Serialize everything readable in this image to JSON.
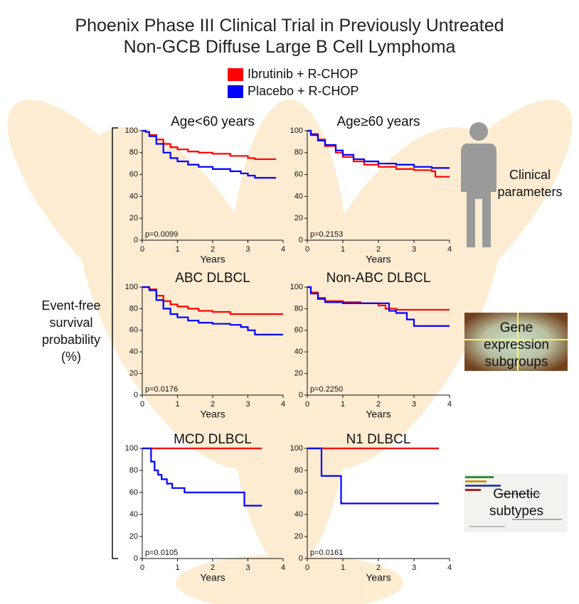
{
  "title": [
    "Phoenix Phase III Clinical Trial in Previously Untreated",
    "Non-GCB Diffuse Large B Cell Lymphoma"
  ],
  "legend": [
    {
      "name": "Ibrutinib + R-CHOP",
      "color": "#ff0000"
    },
    {
      "name": "Placebo + R-CHOP",
      "color": "#0000ff"
    }
  ],
  "y_axis_label": "Event-free survival probability (%)",
  "side_labels": [
    "Clinical parameters",
    "Gene expression subgroups",
    "Genetic subtypes"
  ],
  "chart_data": [
    {
      "type": "line",
      "step": true,
      "title": "Age<60 years",
      "annotation": "p=0.0099",
      "xlabel": "Years",
      "xlim": [
        0,
        4
      ],
      "ylim": [
        0,
        100
      ],
      "xticks": [
        0,
        1,
        2,
        3,
        4
      ],
      "yticks": [
        0,
        20,
        40,
        60,
        80,
        100
      ],
      "series": [
        {
          "color": "#ff0000",
          "x": [
            0,
            0.1,
            0.2,
            0.4,
            0.6,
            0.8,
            1.0,
            1.3,
            1.6,
            2.0,
            2.5,
            3.0,
            3.2,
            3.8
          ],
          "values": [
            100,
            99,
            96,
            92,
            88,
            85,
            83,
            81,
            80,
            79,
            77,
            75,
            74,
            74
          ]
        },
        {
          "color": "#0000ff",
          "x": [
            0,
            0.1,
            0.2,
            0.4,
            0.6,
            0.8,
            1.0,
            1.3,
            1.6,
            2.0,
            2.5,
            2.8,
            3.0,
            3.2,
            3.8
          ],
          "values": [
            100,
            99,
            95,
            88,
            80,
            75,
            72,
            69,
            67,
            65,
            63,
            61,
            59,
            57,
            57
          ]
        }
      ]
    },
    {
      "type": "line",
      "step": true,
      "title": "Age≥60 years",
      "annotation": "p=0.2153",
      "xlabel": "Years",
      "xlim": [
        0,
        4
      ],
      "ylim": [
        0,
        100
      ],
      "xticks": [
        0,
        1,
        2,
        3,
        4
      ],
      "yticks": [
        0,
        20,
        40,
        60,
        80,
        100
      ],
      "series": [
        {
          "color": "#ff0000",
          "x": [
            0,
            0.1,
            0.3,
            0.5,
            0.8,
            1.0,
            1.3,
            1.6,
            2.0,
            2.5,
            3.0,
            3.5,
            3.6,
            4.0
          ],
          "values": [
            100,
            97,
            92,
            86,
            80,
            76,
            72,
            69,
            67,
            65,
            64,
            63,
            58,
            58
          ]
        },
        {
          "color": "#0000ff",
          "x": [
            0,
            0.1,
            0.3,
            0.5,
            0.8,
            1.0,
            1.3,
            1.6,
            2.0,
            2.5,
            3.0,
            3.5,
            4.0
          ],
          "values": [
            100,
            96,
            91,
            87,
            82,
            78,
            74,
            72,
            70,
            69,
            67,
            66,
            66
          ]
        }
      ]
    },
    {
      "type": "line",
      "step": true,
      "title": "ABC DLBCL",
      "annotation": "p=0.0176",
      "xlabel": "Years",
      "xlim": [
        0,
        4
      ],
      "ylim": [
        0,
        100
      ],
      "xticks": [
        0,
        1,
        2,
        3,
        4
      ],
      "yticks": [
        0,
        20,
        40,
        60,
        80,
        100
      ],
      "series": [
        {
          "color": "#ff0000",
          "x": [
            0,
            0.2,
            0.4,
            0.6,
            0.8,
            1.0,
            1.3,
            1.6,
            2.0,
            2.5,
            3.0,
            4.0
          ],
          "values": [
            100,
            98,
            92,
            87,
            84,
            82,
            80,
            78,
            77,
            75,
            75,
            75
          ]
        },
        {
          "color": "#0000ff",
          "x": [
            0,
            0.2,
            0.4,
            0.6,
            0.8,
            1.0,
            1.3,
            1.6,
            2.0,
            2.5,
            2.8,
            3.0,
            3.2,
            4.0
          ],
          "values": [
            100,
            97,
            88,
            80,
            75,
            72,
            69,
            67,
            66,
            65,
            63,
            60,
            56,
            56
          ]
        }
      ]
    },
    {
      "type": "line",
      "step": true,
      "title": "Non-ABC DLBCL",
      "annotation": "p=0.2250",
      "xlabel": "Years",
      "xlim": [
        0,
        4
      ],
      "ylim": [
        0,
        100
      ],
      "xticks": [
        0,
        1,
        2,
        3,
        4
      ],
      "yticks": [
        0,
        20,
        40,
        60,
        80,
        100
      ],
      "series": [
        {
          "color": "#ff0000",
          "x": [
            0,
            0.1,
            0.3,
            0.5,
            1.0,
            1.5,
            2.0,
            2.2,
            2.5,
            3.0,
            4.0
          ],
          "values": [
            100,
            95,
            90,
            87,
            86,
            85,
            83,
            80,
            79,
            79,
            79
          ]
        },
        {
          "color": "#0000ff",
          "x": [
            0,
            0.1,
            0.3,
            0.5,
            1.0,
            1.5,
            2.0,
            2.3,
            2.5,
            2.8,
            3.0,
            4.0
          ],
          "values": [
            100,
            94,
            89,
            86,
            85,
            85,
            85,
            78,
            76,
            70,
            64,
            64
          ]
        }
      ]
    },
    {
      "type": "line",
      "step": true,
      "title": "MCD DLBCL",
      "annotation": "p=0.0105",
      "xlabel": "Years",
      "xlim": [
        0,
        4
      ],
      "ylim": [
        0,
        100
      ],
      "xticks": [
        0,
        1,
        2,
        3,
        4
      ],
      "yticks": [
        0,
        20,
        40,
        60,
        80,
        100
      ],
      "series": [
        {
          "color": "#ff0000",
          "x": [
            0,
            3.4
          ],
          "values": [
            100,
            100
          ]
        },
        {
          "color": "#0000ff",
          "x": [
            0,
            0.25,
            0.35,
            0.45,
            0.55,
            0.7,
            0.85,
            1.2,
            2.9,
            3.4
          ],
          "values": [
            100,
            88,
            80,
            76,
            72,
            68,
            64,
            60,
            48,
            48
          ]
        }
      ]
    },
    {
      "type": "line",
      "step": true,
      "title": "N1 DLBCL",
      "annotation": "p=0.0161",
      "xlabel": "Years",
      "xlim": [
        0,
        4
      ],
      "ylim": [
        0,
        100
      ],
      "xticks": [
        0,
        1,
        2,
        3,
        4
      ],
      "yticks": [
        0,
        20,
        40,
        60,
        80,
        100
      ],
      "series": [
        {
          "color": "#ff0000",
          "x": [
            0,
            3.7
          ],
          "values": [
            100,
            100
          ]
        },
        {
          "color": "#0000ff",
          "x": [
            0,
            0.4,
            0.95,
            3.7
          ],
          "values": [
            100,
            75,
            50,
            50
          ]
        }
      ]
    }
  ]
}
